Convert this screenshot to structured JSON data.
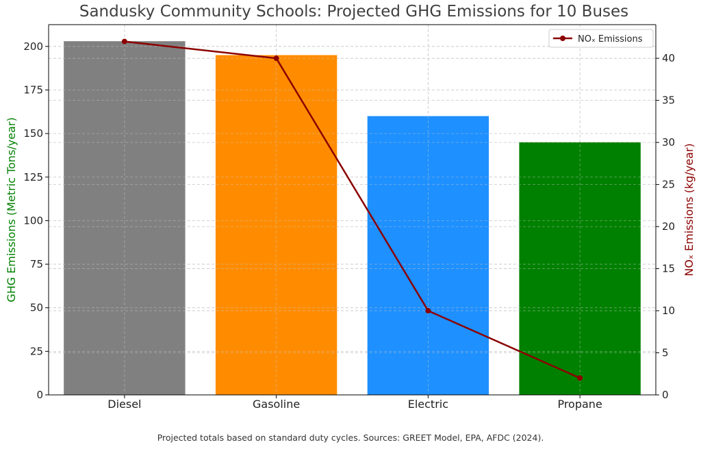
{
  "chart_data": {
    "type": "bar",
    "title": "Sandusky Community Schools: Projected GHG Emissions for 10 Buses",
    "categories": [
      "Diesel",
      "Gasoline",
      "Electric",
      "Propane"
    ],
    "series": [
      {
        "type": "bar",
        "axis": "left",
        "values": [
          203,
          195,
          160,
          145
        ],
        "colors": [
          "#808080",
          "#ff8c00",
          "#1e90ff",
          "#008000"
        ]
      },
      {
        "type": "line",
        "axis": "right",
        "name": "NOₓ Emissions",
        "values": [
          42,
          40,
          10,
          2
        ],
        "color": "#8b0000"
      }
    ],
    "ylabel": "GHG Emissions (Metric Tons/year)",
    "ylabel_color": "#008000",
    "ylim": [
      0,
      212.5
    ],
    "yticks": [
      0,
      25,
      50,
      75,
      100,
      125,
      150,
      175,
      200
    ],
    "y2label": "NOₓ Emissions (kg/year)",
    "y2label_color": "#8b0000",
    "y2lim": [
      0,
      44
    ],
    "y2ticks": [
      0,
      5,
      10,
      15,
      20,
      25,
      30,
      35,
      40
    ],
    "grid": true,
    "legend_position": "top-right"
  },
  "footnote": "Projected totals based on standard duty cycles. Sources: GREET Model, EPA, AFDC (2024)."
}
